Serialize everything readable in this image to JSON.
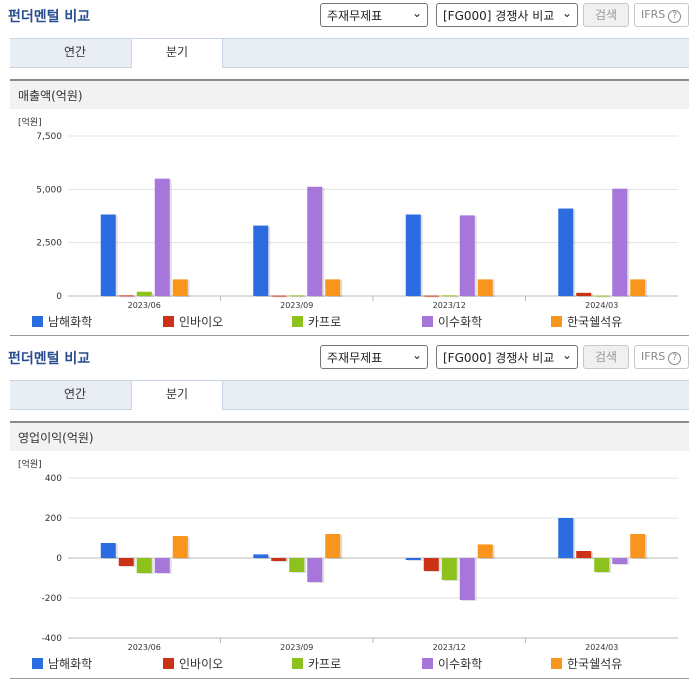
{
  "panels": [
    {
      "title": "펀더멘털 비교",
      "select1": "주재무제표",
      "select2": "[FG000] 경쟁사 비교",
      "search_label": "검색",
      "ifrs_label": "IFRS",
      "ifrs_help": "?",
      "tabs": [
        {
          "label": "연간"
        },
        {
          "label": "분기"
        }
      ],
      "band_label": "매출액(억원)",
      "unit_label": "[억원]"
    },
    {
      "title": "펀더멘털 비교",
      "select1": "주재무제표",
      "select2": "[FG000] 경쟁사 비교",
      "search_label": "검색",
      "ifrs_label": "IFRS",
      "ifrs_help": "?",
      "tabs": [
        {
          "label": "연간"
        },
        {
          "label": "분기"
        }
      ],
      "band_label": "영업이익(억원)",
      "unit_label": "[억원]"
    }
  ],
  "colors": {
    "남해화학": "#2b6de0",
    "인바이오": "#cc3316",
    "카프로": "#8cc21b",
    "이수화학": "#a776db",
    "한국쉘석유": "#f7951d"
  },
  "chart_data": [
    {
      "type": "bar",
      "categories": [
        "2023/06",
        "2023/09",
        "2023/12",
        "2024/03"
      ],
      "ylim": [
        0,
        7500
      ],
      "yticks": [
        "0",
        "2,500",
        "5,000",
        "7,500"
      ],
      "ytick_values": [
        0,
        2500,
        5000,
        7500
      ],
      "series": [
        {
          "name": "남해화학",
          "values": [
            3820,
            3300,
            3820,
            4100
          ]
        },
        {
          "name": "인바이오",
          "values": [
            30,
            20,
            20,
            150
          ]
        },
        {
          "name": "카프로",
          "values": [
            200,
            30,
            30,
            20
          ]
        },
        {
          "name": "이수화학",
          "values": [
            5500,
            5120,
            3780,
            5030
          ]
        },
        {
          "name": "한국쉘석유",
          "values": [
            780,
            780,
            780,
            780
          ]
        }
      ]
    },
    {
      "type": "bar",
      "categories": [
        "2023/06",
        "2023/09",
        "2023/12",
        "2024/03"
      ],
      "ylim": [
        -400,
        400
      ],
      "yticks": [
        "-400",
        "-200",
        "0",
        "200",
        "400"
      ],
      "ytick_values": [
        -400,
        -200,
        0,
        200,
        400
      ],
      "series": [
        {
          "name": "남해화학",
          "values": [
            75,
            18,
            -10,
            200
          ]
        },
        {
          "name": "인바이오",
          "values": [
            -40,
            -15,
            -65,
            35
          ]
        },
        {
          "name": "카프로",
          "values": [
            -75,
            -70,
            -110,
            -70
          ]
        },
        {
          "name": "이수화학",
          "values": [
            -75,
            -120,
            -210,
            -30
          ]
        },
        {
          "name": "한국쉘석유",
          "values": [
            110,
            120,
            68,
            120
          ]
        }
      ]
    }
  ]
}
